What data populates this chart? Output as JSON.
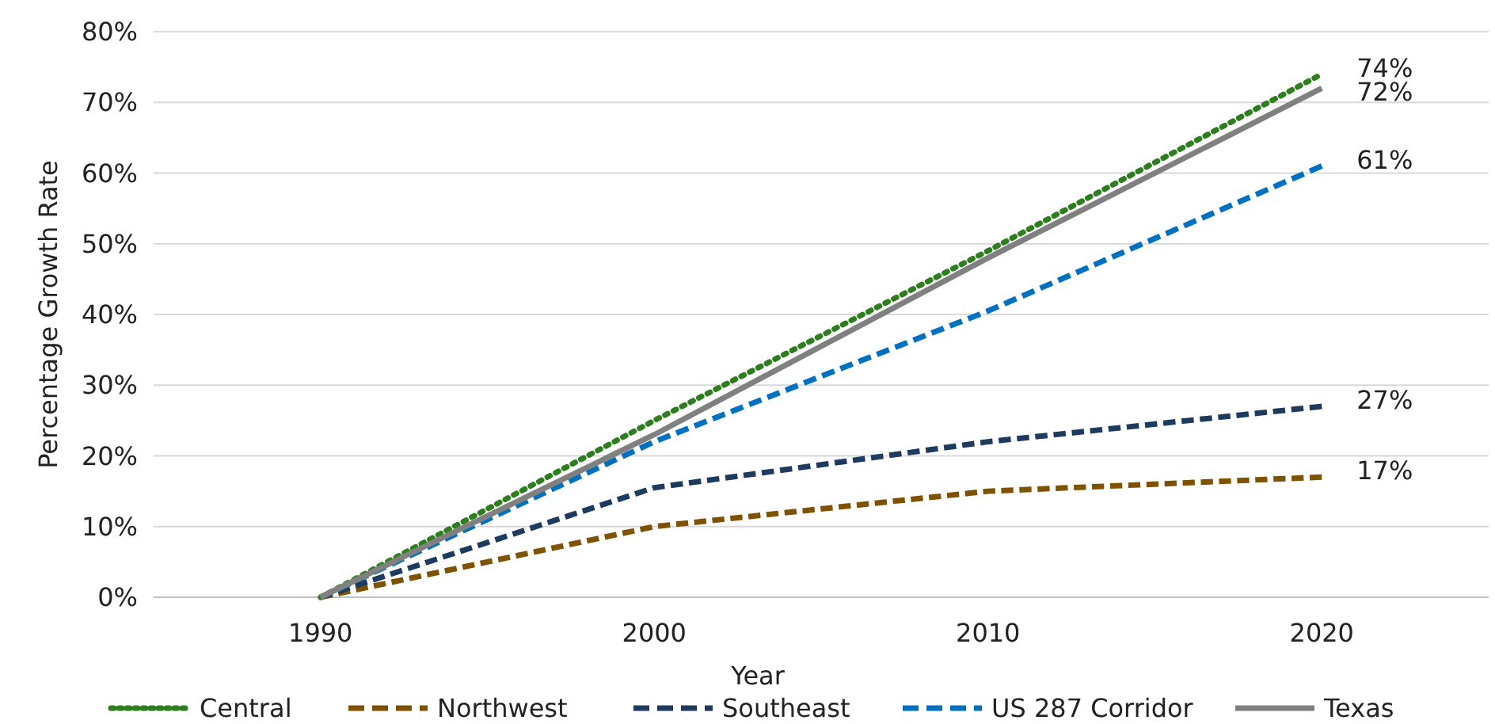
{
  "chart_data": {
    "type": "line",
    "xlabel": "Year",
    "ylabel": "Percentage Growth Rate",
    "x": [
      1990,
      2000,
      2010,
      2020
    ],
    "xlim": [
      1985,
      2025
    ],
    "xticks": [
      1990,
      2000,
      2010,
      2020
    ],
    "ylim": [
      0,
      80
    ],
    "yticks": [
      {
        "value": 0,
        "label": "0%"
      },
      {
        "value": 10,
        "label": "10%"
      },
      {
        "value": 20,
        "label": "20%"
      },
      {
        "value": 30,
        "label": "30%"
      },
      {
        "value": 40,
        "label": "40%"
      },
      {
        "value": 50,
        "label": "50%"
      },
      {
        "value": 60,
        "label": "60%"
      },
      {
        "value": 70,
        "label": "70%"
      },
      {
        "value": 80,
        "label": "80%"
      }
    ],
    "grid": "y",
    "legend": "bottom",
    "marker": "none",
    "series": [
      {
        "name": "Central",
        "color": "#2e7d1e",
        "line_style": "dotted",
        "values": [
          0,
          25,
          49,
          74
        ],
        "value_labels": [
          null,
          null,
          null,
          "74%"
        ]
      },
      {
        "name": "Northwest",
        "color": "#7f5200",
        "line_style": "dashed",
        "values": [
          0,
          10,
          15,
          17
        ],
        "value_labels": [
          null,
          null,
          null,
          "17%"
        ]
      },
      {
        "name": "Southeast",
        "color": "#1f3a5f",
        "line_style": "dashed",
        "values": [
          0,
          15.5,
          22,
          27
        ],
        "value_labels": [
          null,
          null,
          null,
          "27%"
        ]
      },
      {
        "name": "US 287 Corridor",
        "color": "#0070c0",
        "line_style": "dashed",
        "values": [
          0,
          22,
          40.5,
          61
        ],
        "value_labels": [
          null,
          null,
          null,
          "61%"
        ]
      },
      {
        "name": "Texas",
        "color": "#808080",
        "line_style": "solid",
        "values": [
          0,
          23,
          48,
          72
        ],
        "value_labels": [
          null,
          null,
          null,
          "72%"
        ]
      }
    ]
  }
}
